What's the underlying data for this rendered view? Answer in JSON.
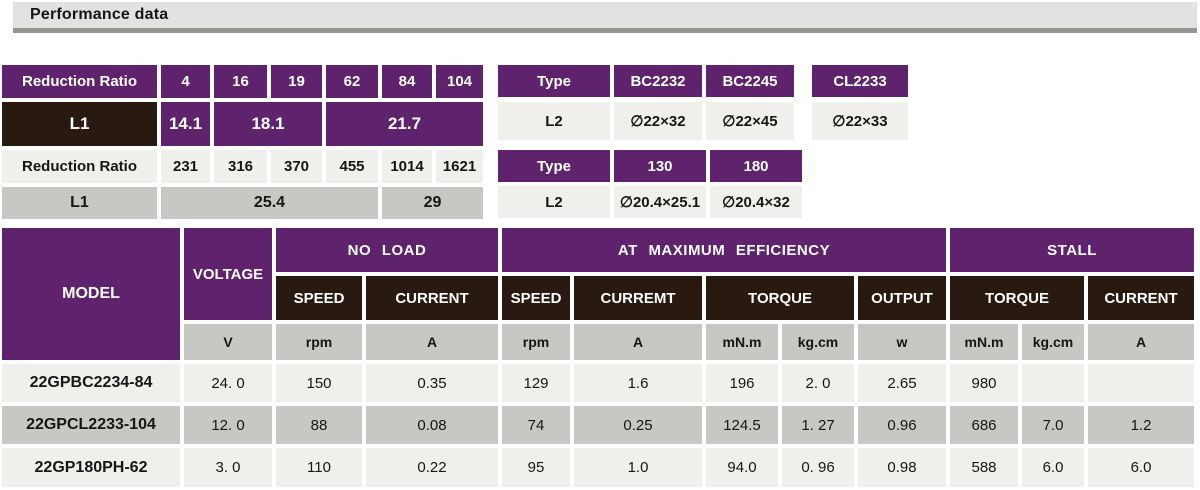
{
  "page_title": "Performance data",
  "colors": {
    "accent_purple": "#5F236E",
    "dark_brown": "#281A10",
    "light_cell": "#EFEFEC",
    "gray_cell": "#C7C7C3",
    "header_bar_bg": "#E2E2E0",
    "header_bar_border": "#95958F"
  },
  "reduction_table_a": {
    "header_label": "Reduction Ratio",
    "ratios": [
      "4",
      "16",
      "19",
      "62",
      "84",
      "104"
    ],
    "l1_label": "L1",
    "l1_values": [
      "14.1",
      "18.1",
      "21.7"
    ]
  },
  "reduction_table_b": {
    "header_label": "Reduction Ratio",
    "ratios": [
      "231",
      "316",
      "370",
      "455",
      "1014",
      "1621"
    ],
    "l1_label": "L1",
    "l1_values": [
      "25.4",
      "29"
    ]
  },
  "type_table_a": {
    "header_label": "Type",
    "types": [
      "BC2232",
      "BC2245",
      "CL2233"
    ],
    "l2_label": "L2",
    "l2_values": [
      "∅22×32",
      "∅22×45",
      "∅22×33"
    ]
  },
  "type_table_b": {
    "header_label": "Type",
    "types": [
      "130",
      "180"
    ],
    "l2_label": "L2",
    "l2_values": [
      "∅20.4×25.1",
      "∅20.4×32"
    ]
  },
  "main_table": {
    "model_header": "MODEL",
    "voltage_header": "VOLTAGE",
    "groups": [
      "NO LOAD",
      "AT MAXIMUM EFFICIENCY",
      "STALL"
    ],
    "sub_headers": [
      "SPEED",
      "CURRENT",
      "SPEED",
      "CURREMT",
      "TORQUE",
      "OUTPUT",
      "TORQUE",
      "CURRENT"
    ],
    "units": [
      "V",
      "rpm",
      "A",
      "rpm",
      "A",
      "mN.m",
      "kg.cm",
      "w",
      "mN.m",
      "kg.cm",
      "A"
    ],
    "rows": [
      {
        "model": "22GPBC2234-84",
        "values": [
          "24. 0",
          "150",
          "0.35",
          "129",
          "1.6",
          "196",
          "2. 0",
          "2.65",
          "980",
          "",
          ""
        ]
      },
      {
        "model": "22GPCL2233-104",
        "values": [
          "12. 0",
          "88",
          "0.08",
          "74",
          "0.25",
          "124.5",
          "1. 27",
          "0.96",
          "686",
          "7.0",
          "1.2"
        ]
      },
      {
        "model": "22GP180PH-62",
        "values": [
          "3. 0",
          "110",
          "0.22",
          "95",
          "1.0",
          "94.0",
          "0. 96",
          "0.98",
          "588",
          "6.0",
          "6.0"
        ]
      }
    ]
  }
}
